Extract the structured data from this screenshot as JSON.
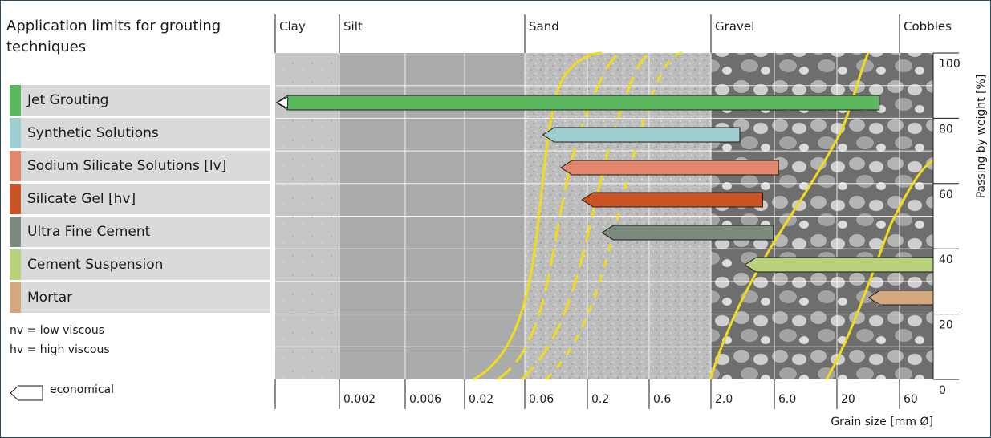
{
  "title": "Application limits for grouting techniques",
  "legend_notes": [
    "nv = low viscous",
    "hv = high viscous"
  ],
  "economical_label": "economical",
  "economical_icon": "economical-arrow-icon",
  "chart_data": {
    "type": "bar",
    "orientation": "horizontal",
    "soil_classes": [
      "Clay",
      "Silt",
      "Sand",
      "Gravel",
      "Cobbles"
    ],
    "x_tick_labels": [
      "0.002",
      "0.006",
      "0.02",
      "0.06",
      "0.2",
      "0.6",
      "2.0",
      "6.0",
      "20",
      "60"
    ],
    "xlabel": "Grain size [mm Ø]",
    "x_scale": "log",
    "xlim": [
      0.0006,
      120
    ],
    "y_tick_labels": [
      "100",
      "80",
      "60",
      "40",
      "20",
      "0"
    ],
    "ylabel": "Passing by weight [%]",
    "ylim": [
      0,
      100
    ],
    "grid": true,
    "series": [
      {
        "name": "Jet Grouting",
        "color": "#5cb85f",
        "x_start": 0.0007,
        "x_end": 42
      },
      {
        "name": "Synthetic Solutions",
        "color": "#9ecdd1",
        "x_start": 0.085,
        "x_end": 3.3
      },
      {
        "name": "Sodium Silicate Solutions [lv]",
        "color": "#e2876b",
        "x_start": 0.12,
        "x_end": 6.5
      },
      {
        "name": "Silicate Gel [hv]",
        "color": "#cb5427",
        "x_start": 0.18,
        "x_end": 4.9
      },
      {
        "name": "Ultra Fine Cement",
        "color": "#7b8b7c",
        "x_start": 0.26,
        "x_end": 5.9
      },
      {
        "name": "Cement Suspension",
        "color": "#b8d27b",
        "x_start": 3.6,
        "x_end": 120
      },
      {
        "name": "Mortar",
        "color": "#d4a97f",
        "x_start": 35,
        "x_end": 120
      }
    ]
  }
}
